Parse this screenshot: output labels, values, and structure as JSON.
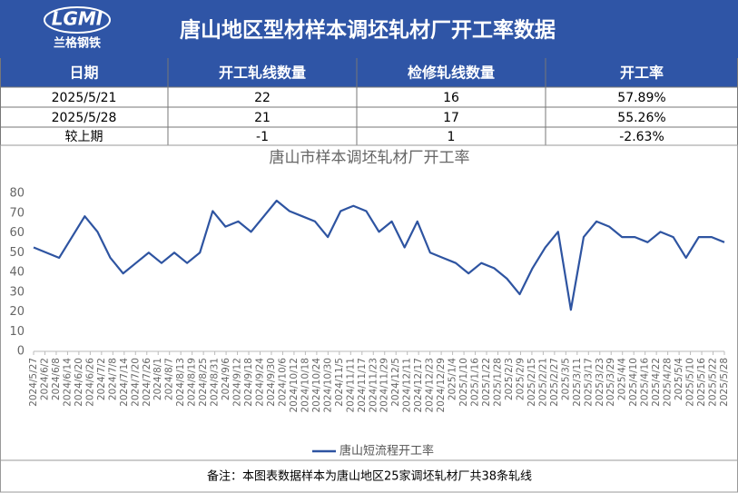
{
  "header": {
    "logo": "LGMI",
    "logo_sub": "兰格钢铁",
    "title": "唐山地区型材样本调坯轧材厂开工率数据"
  },
  "table": {
    "columns": [
      "日期",
      "开工轧线数量",
      "检修轧线数量",
      "开工率"
    ],
    "rows": [
      [
        "2025/5/21",
        "22",
        "16",
        "57.89%"
      ],
      [
        "2025/5/28",
        "21",
        "17",
        "55.26%"
      ],
      [
        "较上期",
        "-1",
        "1",
        "-2.63%"
      ]
    ]
  },
  "chart_data": {
    "type": "line",
    "title": "唐山市样本调坯轧材厂开工率",
    "xticks": [
      "2024/5/27",
      "2024/6/2",
      "2024/6/8",
      "2024/6/14",
      "2024/6/20",
      "2024/6/26",
      "2024/7/2",
      "2024/7/8",
      "2024/7/14",
      "2024/7/20",
      "2024/7/26",
      "2024/8/1",
      "2024/8/7",
      "2024/8/13",
      "2024/8/19",
      "2024/8/25",
      "2024/8/31",
      "2024/9/6",
      "2024/9/12",
      "2024/9/18",
      "2024/9/24",
      "2024/9/30",
      "2024/10/6",
      "2024/10/12",
      "2024/10/18",
      "2024/10/24",
      "2024/10/30",
      "2024/11/5",
      "2024/11/11",
      "2024/11/17",
      "2024/11/23",
      "2024/11/29",
      "2024/12/5",
      "2024/12/11",
      "2024/12/17",
      "2024/12/23",
      "2024/12/29",
      "2025/1/4",
      "2025/1/10",
      "2025/1/16",
      "2025/1/22",
      "2025/1/28",
      "2025/2/3",
      "2025/2/9",
      "2025/2/15",
      "2025/2/21",
      "2025/2/27",
      "2025/3/5",
      "2025/3/11",
      "2025/3/17",
      "2025/3/23",
      "2025/3/29",
      "2025/4/4",
      "2025/4/10",
      "2025/4/16",
      "2025/4/22",
      "2025/4/28",
      "2025/5/4",
      "2025/5/10",
      "2025/5/16",
      "2025/5/22",
      "2025/5/28"
    ],
    "series": [
      {
        "name": "唐山短流程开工率",
        "color": "#2e54a1",
        "values": [
          52.63,
          50,
          47.37,
          57.89,
          68.42,
          60.53,
          47.37,
          39.47,
          44.74,
          50,
          44.74,
          50,
          44.74,
          50,
          71.05,
          63.16,
          65.79,
          60.53,
          68.42,
          76.32,
          71.05,
          68.42,
          65.79,
          57.89,
          71.05,
          73.68,
          71.05,
          60.53,
          65.79,
          52.63,
          65.79,
          50,
          47.37,
          44.74,
          39.47,
          44.74,
          42.11,
          36.84,
          28.95,
          42.11,
          52.63,
          60.53,
          21.05,
          57.89,
          65.79,
          63.16,
          57.89,
          57.89,
          55.26,
          60.53,
          57.89,
          47.37,
          57.89,
          57.89,
          55.26
        ]
      }
    ],
    "ylim": [
      0,
      80
    ],
    "yticks": [
      0,
      10,
      20,
      30,
      40,
      50,
      60,
      70,
      80
    ],
    "grid": false,
    "legend": "bottom"
  },
  "note": "备注：本图表数据样本为唐山地区25家调坯轧材厂共38条轧线"
}
